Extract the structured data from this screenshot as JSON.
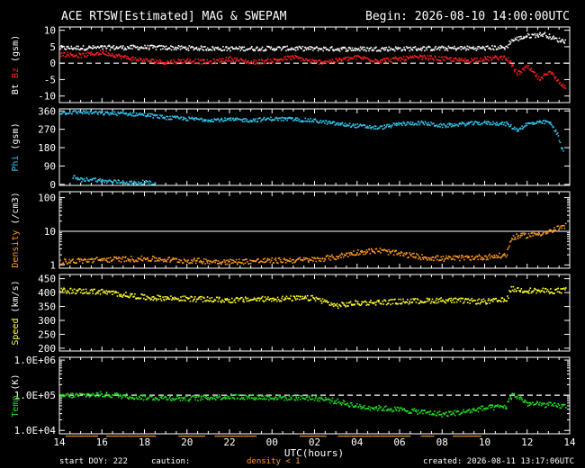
{
  "header": {
    "title": "ACE RTSW[Estimated] MAG & SWEPAM",
    "begin": "Begin: 2026-08-10 14:00:00UTC"
  },
  "footer": {
    "start_doy": "start DOY: 222",
    "caution": "caution:",
    "density_note": "density < 1",
    "created": "created: 2026-08-11 13:17:06UTC"
  },
  "xaxis": {
    "label": "UTC(hours)",
    "ticks": [
      "14",
      "16",
      "18",
      "20",
      "22",
      "00",
      "02",
      "04",
      "06",
      "08",
      "10",
      "12",
      "14"
    ],
    "range_hours": [
      0,
      24
    ]
  },
  "colors": {
    "bt": "#ffffff",
    "bz": "#ff2020",
    "phi": "#30c8f0",
    "density": "#ff9a20",
    "speed": "#ffff30",
    "temp": "#20e020",
    "caution": "#ff9a20"
  },
  "chart_data": [
    {
      "type": "scatter",
      "panel": "mag",
      "ylabel_parts": [
        "Bt",
        "Bz",
        "(gsm)"
      ],
      "ylim": [
        -12,
        11
      ],
      "yticks": [
        "10",
        "5",
        "0",
        "-5",
        "-10"
      ],
      "ytick_values": [
        10,
        5,
        0,
        -5,
        -10
      ],
      "dashed_ref": 0,
      "series": [
        {
          "name": "Bt",
          "color_key": "bt",
          "knots": [
            [
              0,
              4.8
            ],
            [
              2,
              4.9
            ],
            [
              4,
              5
            ],
            [
              6,
              4.8
            ],
            [
              8,
              4.6
            ],
            [
              10,
              4.7
            ],
            [
              12,
              4.6
            ],
            [
              14,
              4.5
            ],
            [
              16,
              4.6
            ],
            [
              18,
              4.7
            ],
            [
              20,
              4.8
            ],
            [
              21,
              5
            ],
            [
              21.2,
              7
            ],
            [
              22,
              8.5
            ],
            [
              22.8,
              9
            ],
            [
              23.3,
              7.5
            ],
            [
              23.8,
              6.8
            ]
          ]
        },
        {
          "name": "Bz",
          "color_key": "bz",
          "knots": [
            [
              0,
              3
            ],
            [
              1,
              2.5
            ],
            [
              2,
              3.5
            ],
            [
              3,
              2
            ],
            [
              4,
              1
            ],
            [
              5,
              0.5
            ],
            [
              6,
              1
            ],
            [
              7,
              0.5
            ],
            [
              8,
              1.5
            ],
            [
              9,
              0.5
            ],
            [
              10,
              1
            ],
            [
              11,
              2
            ],
            [
              12,
              0.5
            ],
            [
              13,
              1
            ],
            [
              14,
              2
            ],
            [
              15,
              1
            ],
            [
              16,
              1.5
            ],
            [
              17,
              2
            ],
            [
              18,
              1.5
            ],
            [
              19,
              1
            ],
            [
              20,
              1.5
            ],
            [
              21,
              2
            ],
            [
              21.5,
              -3
            ],
            [
              22,
              -1
            ],
            [
              22.6,
              -5
            ],
            [
              23,
              -2
            ],
            [
              23.5,
              -6
            ],
            [
              23.8,
              -7
            ]
          ]
        }
      ]
    },
    {
      "type": "scatter",
      "panel": "phi",
      "ylabel_parts": [
        "Phi",
        "(gsm)"
      ],
      "ylim": [
        -5,
        370
      ],
      "yticks": [
        "360",
        "270",
        "180",
        "90",
        "0"
      ],
      "ytick_values": [
        360,
        270,
        180,
        90,
        0
      ],
      "series": [
        {
          "name": "Phi",
          "color_key": "phi",
          "knots": [
            [
              0,
              355
            ],
            [
              1,
              358
            ],
            [
              2,
              352
            ],
            [
              3,
              350
            ],
            [
              4,
              345
            ],
            [
              5,
              330
            ],
            [
              6,
              325
            ],
            [
              7,
              320
            ],
            [
              8,
              320
            ],
            [
              9,
              318
            ],
            [
              10,
              325
            ],
            [
              11,
              322
            ],
            [
              12,
              315
            ],
            [
              13,
              300
            ],
            [
              14,
              290
            ],
            [
              15,
              280
            ],
            [
              16,
              300
            ],
            [
              17,
              305
            ],
            [
              18,
              290
            ],
            [
              19,
              300
            ],
            [
              20,
              305
            ],
            [
              21,
              300
            ],
            [
              21.5,
              270
            ],
            [
              22,
              300
            ],
            [
              23,
              310
            ],
            [
              23.4,
              250
            ],
            [
              23.7,
              150
            ]
          ]
        },
        {
          "name": "Phi",
          "color_key": "phi",
          "knots": [
            [
              0.6,
              40
            ],
            [
              1,
              25
            ],
            [
              1.5,
              30
            ],
            [
              2,
              20
            ],
            [
              3,
              15
            ],
            [
              3.5,
              10
            ],
            [
              4,
              15
            ],
            [
              4.5,
              5
            ]
          ]
        }
      ]
    },
    {
      "type": "scatter",
      "panel": "density",
      "ylabel_parts": [
        "Density",
        "(/cm3)"
      ],
      "log": true,
      "ylim": [
        0.8,
        150
      ],
      "yticks": [
        "100",
        "10",
        "1"
      ],
      "ytick_values": [
        100,
        10,
        1
      ],
      "series": [
        {
          "name": "Density",
          "color_key": "density",
          "knots": [
            [
              0,
              1.3
            ],
            [
              2,
              1.5
            ],
            [
              4,
              1.6
            ],
            [
              6,
              1.4
            ],
            [
              8,
              1.3
            ],
            [
              10,
              1.4
            ],
            [
              12,
              1.5
            ],
            [
              13,
              1.8
            ],
            [
              14,
              2.5
            ],
            [
              15,
              2.8
            ],
            [
              16,
              2.2
            ],
            [
              17,
              1.8
            ],
            [
              18,
              1.6
            ],
            [
              19,
              1.7
            ],
            [
              20,
              1.8
            ],
            [
              21,
              2
            ],
            [
              21.3,
              7
            ],
            [
              22,
              8
            ],
            [
              23,
              10
            ],
            [
              23.8,
              15
            ]
          ]
        }
      ]
    },
    {
      "type": "scatter",
      "panel": "speed",
      "ylabel_parts": [
        "Speed",
        "(km/s)"
      ],
      "ylim": [
        190,
        465
      ],
      "yticks": [
        "450",
        "400",
        "350",
        "300",
        "250",
        "200"
      ],
      "ytick_values": [
        450,
        400,
        350,
        300,
        250,
        200
      ],
      "series": [
        {
          "name": "Speed",
          "color_key": "speed",
          "knots": [
            [
              0,
              410
            ],
            [
              2,
              405
            ],
            [
              3,
              395
            ],
            [
              4,
              385
            ],
            [
              6,
              380
            ],
            [
              8,
              375
            ],
            [
              10,
              380
            ],
            [
              12,
              382
            ],
            [
              13,
              355
            ],
            [
              14,
              365
            ],
            [
              16,
              370
            ],
            [
              18,
              375
            ],
            [
              20,
              370
            ],
            [
              21,
              375
            ],
            [
              21.2,
              415
            ],
            [
              22,
              410
            ],
            [
              23,
              408
            ],
            [
              23.8,
              410
            ]
          ]
        }
      ]
    },
    {
      "type": "scatter",
      "panel": "temp",
      "ylabel_parts": [
        "Temp",
        "(K)"
      ],
      "log": true,
      "ylim": [
        8000,
        1200000
      ],
      "yticks": [
        "1.0E+06",
        "1.0E+05",
        "1.0E+04"
      ],
      "ytick_values": [
        1000000,
        100000,
        10000
      ],
      "dashed_ref": 100000,
      "series": [
        {
          "name": "Temp",
          "color_key": "temp",
          "knots": [
            [
              0,
              100000
            ],
            [
              2,
              110000
            ],
            [
              4,
              90000
            ],
            [
              6,
              85000
            ],
            [
              8,
              95000
            ],
            [
              10,
              90000
            ],
            [
              12,
              88000
            ],
            [
              13,
              70000
            ],
            [
              14,
              50000
            ],
            [
              16,
              40000
            ],
            [
              17,
              35000
            ],
            [
              18,
              30000
            ],
            [
              19,
              35000
            ],
            [
              20,
              45000
            ],
            [
              21,
              50000
            ],
            [
              21.3,
              110000
            ],
            [
              22,
              60000
            ],
            [
              23,
              55000
            ],
            [
              23.8,
              50000
            ]
          ]
        }
      ]
    }
  ]
}
